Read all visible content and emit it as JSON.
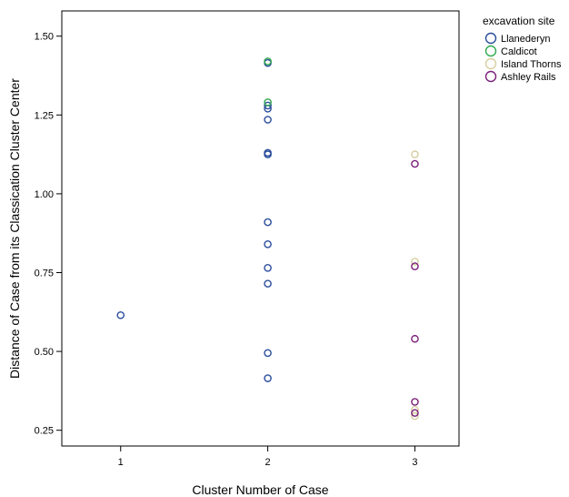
{
  "chart_data": {
    "type": "scatter",
    "xlabel": "Cluster Number of Case",
    "ylabel": "Distance of Case from its Classication Cluster Center",
    "x_ticks": [
      "1",
      "2",
      "3"
    ],
    "y_ticks": [
      "0.25",
      "0.50",
      "0.75",
      "1.00",
      "1.25",
      "1.50"
    ],
    "xlim": [
      0.6,
      3.3
    ],
    "ylim": [
      0.2,
      1.58
    ],
    "grid": false,
    "legend": {
      "title": "excavation site",
      "placement": "top-right"
    },
    "series": [
      {
        "name": "Llanederyn",
        "color": "#2a4d9b",
        "points": [
          {
            "x": 1,
            "y": 0.615
          },
          {
            "x": 2,
            "y": 0.415
          },
          {
            "x": 2,
            "y": 0.495
          },
          {
            "x": 2,
            "y": 0.715
          },
          {
            "x": 2,
            "y": 0.765
          },
          {
            "x": 2,
            "y": 0.84
          },
          {
            "x": 2,
            "y": 0.91
          },
          {
            "x": 2,
            "y": 1.125
          },
          {
            "x": 2,
            "y": 1.13
          },
          {
            "x": 2,
            "y": 1.235
          },
          {
            "x": 2,
            "y": 1.27
          },
          {
            "x": 2,
            "y": 1.28
          },
          {
            "x": 2,
            "y": 1.415
          }
        ]
      },
      {
        "name": "Caldicot",
        "color": "#2fa84f",
        "points": [
          {
            "x": 2,
            "y": 1.29
          },
          {
            "x": 2,
            "y": 1.42
          }
        ]
      },
      {
        "name": "Island Thorns",
        "color": "#d6cfa0",
        "points": [
          {
            "x": 3,
            "y": 0.295
          },
          {
            "x": 3,
            "y": 0.315
          },
          {
            "x": 3,
            "y": 0.785
          },
          {
            "x": 3,
            "y": 1.125
          }
        ]
      },
      {
        "name": "Ashley Rails",
        "color": "#7b1f7a",
        "points": [
          {
            "x": 3,
            "y": 0.305
          },
          {
            "x": 3,
            "y": 0.34
          },
          {
            "x": 3,
            "y": 0.54
          },
          {
            "x": 3,
            "y": 0.77
          },
          {
            "x": 3,
            "y": 1.095
          }
        ]
      }
    ]
  }
}
